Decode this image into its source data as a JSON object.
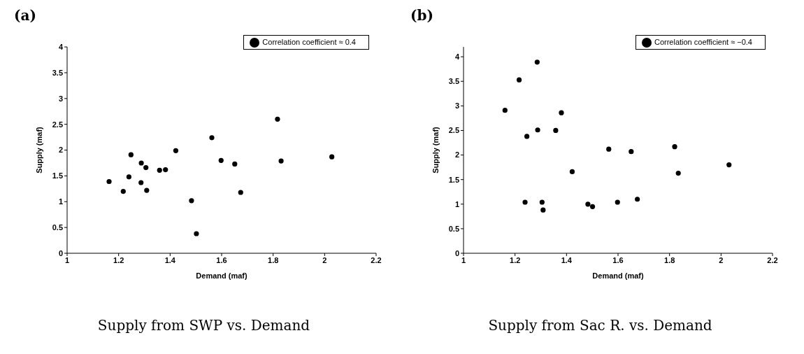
{
  "chart_data": [
    {
      "type": "scatter",
      "title": "(a)",
      "xlabel": "Demand (maf)",
      "ylabel": "Supply (maf)",
      "annotations": [
        "Supply from SWP vs. Demand"
      ],
      "xlim": [
        1,
        2.2
      ],
      "xticks": [
        1,
        1.2,
        1.4,
        1.6,
        1.8,
        2,
        2.2
      ],
      "ylim": [
        0,
        4
      ],
      "yticks": [
        0,
        0.5,
        1,
        1.5,
        2,
        2.5,
        3,
        3.5,
        4
      ],
      "grid": false,
      "legend": "top right",
      "marker": "circle",
      "series": [
        {
          "name": "Correlation coefficient ≈ 0.4",
          "color": "#000000",
          "x": [
            1.163,
            1.218,
            1.24,
            1.248,
            1.288,
            1.287,
            1.306,
            1.309,
            1.359,
            1.382,
            1.422,
            1.483,
            1.502,
            1.562,
            1.598,
            1.651,
            1.674,
            1.817,
            1.831,
            2.028
          ],
          "values": [
            1.39,
            1.2,
            1.48,
            1.91,
            1.75,
            1.37,
            1.66,
            1.22,
            1.61,
            1.62,
            1.99,
            1.02,
            0.38,
            2.24,
            1.8,
            1.73,
            1.18,
            2.6,
            1.79,
            1.87
          ]
        }
      ]
    },
    {
      "type": "scatter",
      "title": "(b)",
      "xlabel": "Demand (maf)",
      "ylabel": "Supply (maf)",
      "annotations": [
        "Supply from Sac R. vs. Demand"
      ],
      "xlim": [
        1,
        2.2
      ],
      "xticks": [
        1,
        1.2,
        1.4,
        1.6,
        1.8,
        2,
        2.2
      ],
      "ylim": [
        0,
        4.2
      ],
      "yticks": [
        0,
        0.5,
        1,
        1.5,
        2,
        2.5,
        3,
        3.5,
        4
      ],
      "grid": false,
      "legend": "top right",
      "marker": "circle",
      "series": [
        {
          "name": "Correlation coefficient ≈ −0.4",
          "color": "#000000",
          "x": [
            1.161,
            1.216,
            1.286,
            1.246,
            1.288,
            1.358,
            1.38,
            1.239,
            1.305,
            1.309,
            1.422,
            1.483,
            1.501,
            1.564,
            1.598,
            1.651,
            1.675,
            1.82,
            1.834,
            2.031
          ],
          "values": [
            2.91,
            3.53,
            3.89,
            2.38,
            2.51,
            2.5,
            2.86,
            1.04,
            1.04,
            0.88,
            1.66,
            1.0,
            0.95,
            2.12,
            1.04,
            2.07,
            1.1,
            2.17,
            1.63,
            1.8
          ]
        }
      ]
    }
  ]
}
